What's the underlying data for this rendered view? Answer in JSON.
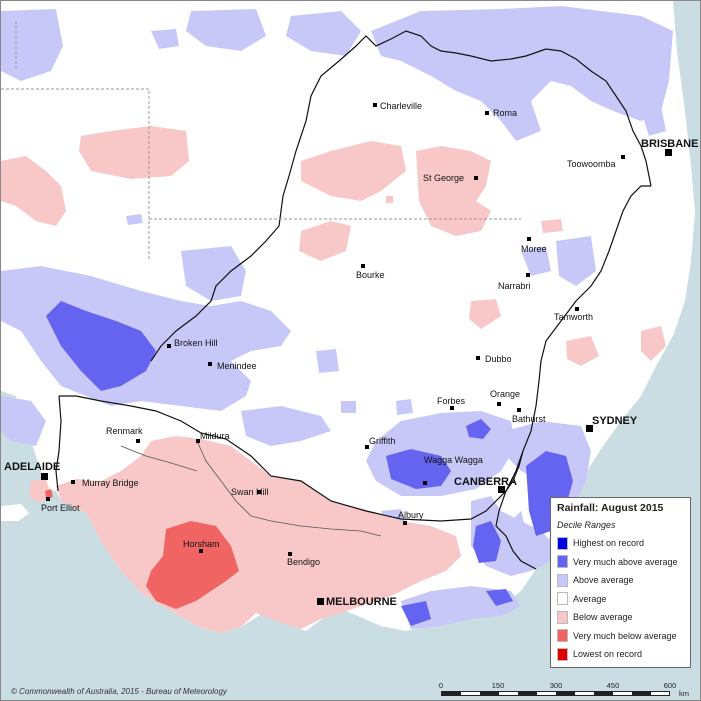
{
  "map": {
    "legend": {
      "title": "Rainfall: August 2015",
      "subtitle": "Decile Ranges",
      "items": [
        {
          "label": "Highest on record",
          "color": "#0000e0"
        },
        {
          "label": "Very much above average",
          "color": "#6464f0"
        },
        {
          "label": "Above average",
          "color": "#c8c8f8"
        },
        {
          "label": "Average",
          "color": "#ffffff"
        },
        {
          "label": "Below average",
          "color": "#f8c8c8"
        },
        {
          "label": "Very much below average",
          "color": "#f06464"
        },
        {
          "label": "Lowest on record",
          "color": "#e00000"
        }
      ]
    },
    "colors": {
      "sea": "#c9dde2",
      "land_average": "#ffffff",
      "state_border": "#111111",
      "internal_line": "#999999"
    },
    "capitals": [
      {
        "name": "BRISBANE"
      },
      {
        "name": "SYDNEY"
      },
      {
        "name": "CANBERRA"
      },
      {
        "name": "MELBOURNE"
      },
      {
        "name": "ADELAIDE"
      }
    ],
    "towns": [
      {
        "name": "Charleville"
      },
      {
        "name": "Roma"
      },
      {
        "name": "Toowoomba"
      },
      {
        "name": "St George"
      },
      {
        "name": "Moree"
      },
      {
        "name": "Bourke"
      },
      {
        "name": "Narrabri"
      },
      {
        "name": "Tamworth"
      },
      {
        "name": "Broken Hill"
      },
      {
        "name": "Menindee"
      },
      {
        "name": "Dubbo"
      },
      {
        "name": "Orange"
      },
      {
        "name": "Forbes"
      },
      {
        "name": "Bathurst"
      },
      {
        "name": "Griffith"
      },
      {
        "name": "Wagga Wagga"
      },
      {
        "name": "Renmark"
      },
      {
        "name": "Mildura"
      },
      {
        "name": "Swan Hill"
      },
      {
        "name": "Murray Bridge"
      },
      {
        "name": "Port Elliot"
      },
      {
        "name": "Albury"
      },
      {
        "name": "Horsham"
      },
      {
        "name": "Bendigo"
      }
    ],
    "copyright": "© Commonwealth of Australia, 2015 - Bureau of Meteorology",
    "scale": {
      "ticks": [
        "0",
        "150",
        "300",
        "450",
        "600"
      ],
      "unit": "km"
    }
  }
}
